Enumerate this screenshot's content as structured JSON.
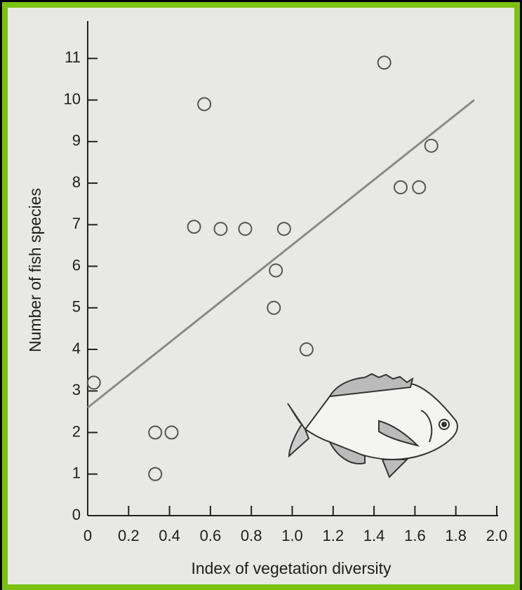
{
  "chart_data": {
    "type": "scatter",
    "x_label": "Index of vegetation diversity",
    "y_label": "Number of fish species",
    "xlim": [
      0,
      2.0
    ],
    "ylim": [
      0,
      11.9
    ],
    "xticks": [
      0,
      0.2,
      0.4,
      0.6,
      0.8,
      {
        "value": 1,
        "label": "1.0"
      },
      1.2,
      1.4,
      1.6,
      1.8,
      {
        "value": 2,
        "label": "2.0"
      }
    ],
    "yticks": [
      0,
      1,
      2,
      3,
      4,
      5,
      6,
      7,
      8,
      9,
      10,
      11
    ],
    "series": [
      {
        "type": "scatter",
        "color": "#555555",
        "x": [
          0.03,
          0.33,
          0.41,
          0.33,
          0.52,
          0.57,
          0.65,
          0.77,
          0.96,
          0.92,
          0.91,
          1.07,
          1.45,
          1.53,
          1.62,
          1.68
        ],
        "y": [
          3.2,
          2.0,
          2.0,
          1.0,
          6.95,
          9.9,
          6.9,
          6.9,
          6.9,
          5.9,
          5.0,
          4.0,
          10.9,
          7.9,
          7.9,
          8.9
        ]
      },
      {
        "type": "line",
        "color": "#8a8a8a",
        "x": [
          0,
          1.89
        ],
        "y": [
          2.6,
          10.0
        ]
      }
    ]
  }
}
